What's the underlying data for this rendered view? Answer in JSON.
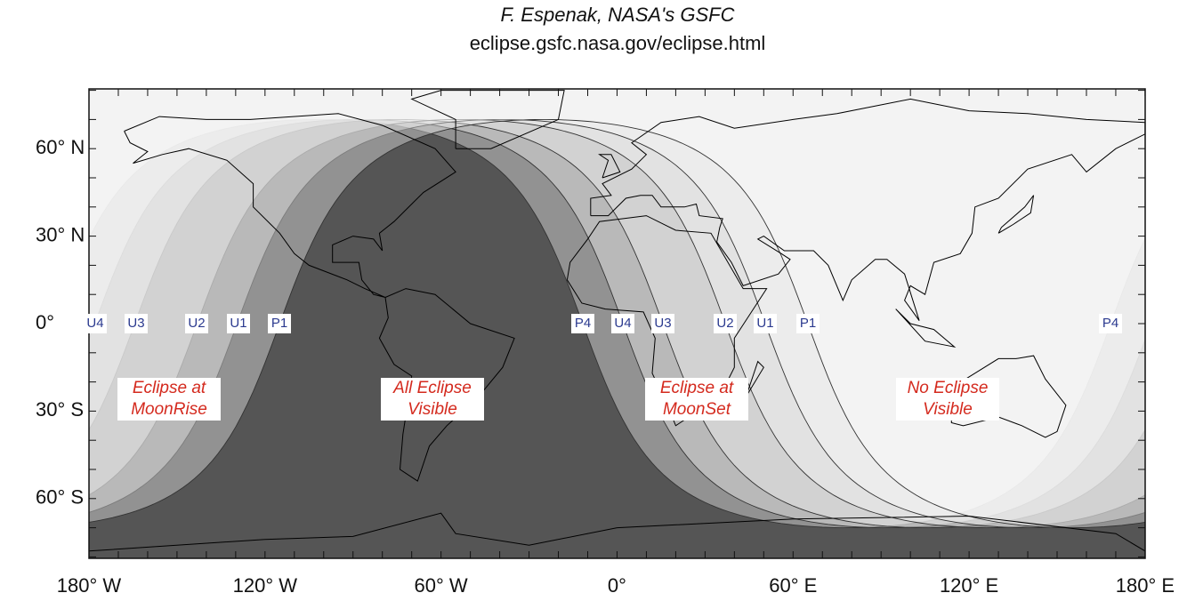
{
  "header": {
    "credit": "F. Espenak, NASA's GSFC",
    "url": "eclipse.gsfc.nasa.gov/eclipse.html"
  },
  "map": {
    "lat_labels": [
      "60° N",
      "30° N",
      "0°",
      "30° S",
      "60° S"
    ],
    "lon_labels": [
      "180° W",
      "120° W",
      "60° W",
      "0°",
      "60° E",
      "120° E",
      "180° E"
    ],
    "contact_labels": [
      "U4",
      "U3",
      "U2",
      "U1",
      "P1",
      "P4",
      "U4",
      "U3",
      "U2",
      "U1",
      "P1",
      "P4"
    ],
    "regions": [
      {
        "lines": [
          "Eclipse at",
          "MoonRise"
        ]
      },
      {
        "lines": [
          "All Eclipse",
          "Visible"
        ]
      },
      {
        "lines": [
          "Eclipse at",
          "MoonSet"
        ]
      },
      {
        "lines": [
          "No Eclipse",
          "Visible"
        ]
      }
    ]
  }
}
